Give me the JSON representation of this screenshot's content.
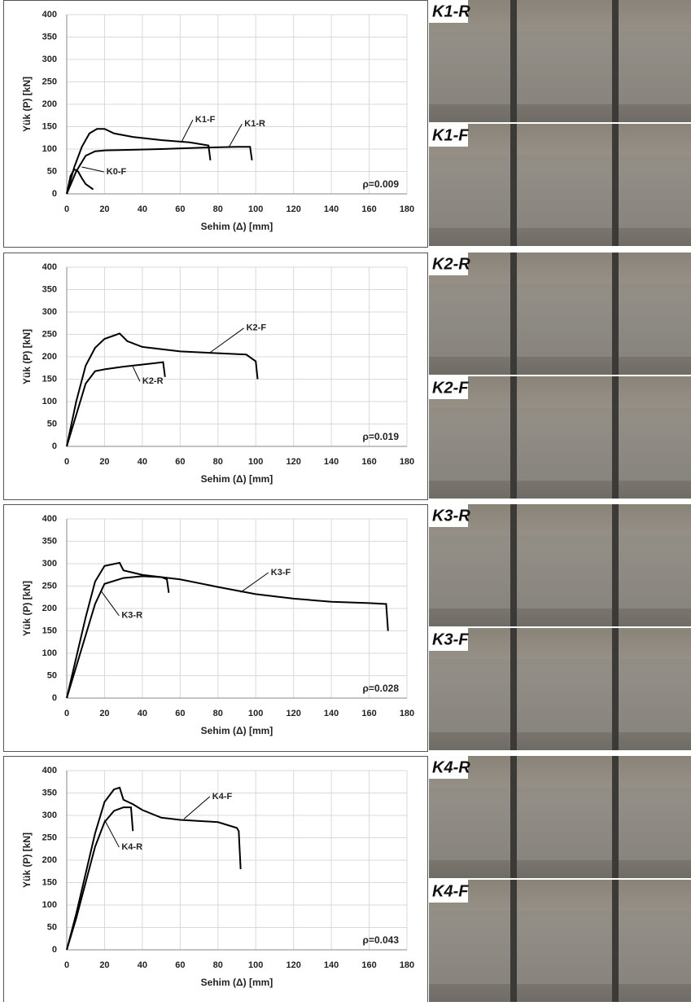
{
  "chart_data": [
    {
      "type": "line",
      "annotation": "ρ=0.009",
      "x_label": "Sehim (Δ) [mm]",
      "y_label": "Yük (P) [kN]",
      "xlim": [
        0,
        180
      ],
      "ylim": [
        0,
        400
      ],
      "xticks": [
        0,
        20,
        40,
        60,
        80,
        100,
        120,
        140,
        160,
        180
      ],
      "yticks": [
        0,
        50,
        100,
        150,
        200,
        250,
        300,
        350,
        400
      ],
      "grid": true,
      "series": [
        {
          "name": "K1-F",
          "color": "#000000",
          "x": [
            0,
            4,
            8,
            12,
            16,
            20,
            25,
            35,
            50,
            65,
            75,
            76
          ],
          "values": [
            0,
            60,
            105,
            135,
            145,
            145,
            135,
            127,
            120,
            115,
            108,
            75
          ]
        },
        {
          "name": "K1-R",
          "color": "#000000",
          "x": [
            0,
            5,
            10,
            15,
            20,
            30,
            50,
            70,
            90,
            97,
            98
          ],
          "values": [
            0,
            50,
            85,
            95,
            97,
            98,
            100,
            103,
            105,
            105,
            75
          ]
        },
        {
          "name": "K0-F",
          "color": "#000000",
          "x": [
            0,
            2,
            4,
            6,
            8,
            10,
            14
          ],
          "values": [
            0,
            40,
            55,
            50,
            35,
            22,
            10
          ]
        }
      ]
    },
    {
      "type": "line",
      "annotation": "ρ=0.019",
      "x_label": "Sehim (Δ) [mm]",
      "y_label": "Yük (P) [kN]",
      "xlim": [
        0,
        180
      ],
      "ylim": [
        0,
        400
      ],
      "xticks": [
        0,
        20,
        40,
        60,
        80,
        100,
        120,
        140,
        160,
        180
      ],
      "yticks": [
        0,
        50,
        100,
        150,
        200,
        250,
        300,
        350,
        400
      ],
      "grid": true,
      "series": [
        {
          "name": "K2-F",
          "color": "#000000",
          "x": [
            0,
            5,
            10,
            15,
            20,
            28,
            32,
            40,
            60,
            80,
            95,
            100,
            101
          ],
          "values": [
            0,
            100,
            180,
            220,
            240,
            252,
            235,
            222,
            212,
            208,
            205,
            190,
            150
          ]
        },
        {
          "name": "K2-R",
          "color": "#000000",
          "x": [
            0,
            5,
            10,
            15,
            20,
            30,
            45,
            51,
            52
          ],
          "values": [
            0,
            70,
            140,
            168,
            172,
            178,
            185,
            188,
            155
          ]
        }
      ]
    },
    {
      "type": "line",
      "annotation": "ρ=0.028",
      "x_label": "Sehim (Δ) [mm]",
      "y_label": "Yük (P) [kN]",
      "xlim": [
        0,
        180
      ],
      "ylim": [
        0,
        400
      ],
      "xticks": [
        0,
        20,
        40,
        60,
        80,
        100,
        120,
        140,
        160,
        180
      ],
      "yticks": [
        0,
        50,
        100,
        150,
        200,
        250,
        300,
        350,
        400
      ],
      "grid": true,
      "series": [
        {
          "name": "K3-F",
          "color": "#000000",
          "x": [
            0,
            5,
            10,
            15,
            20,
            28,
            30,
            40,
            60,
            80,
            100,
            120,
            140,
            160,
            169,
            170
          ],
          "values": [
            0,
            90,
            180,
            260,
            295,
            302,
            285,
            275,
            265,
            248,
            232,
            222,
            215,
            212,
            210,
            150
          ]
        },
        {
          "name": "K3-R",
          "color": "#000000",
          "x": [
            0,
            5,
            10,
            15,
            20,
            30,
            40,
            50,
            53,
            54
          ],
          "values": [
            0,
            70,
            140,
            210,
            255,
            268,
            272,
            270,
            265,
            235
          ]
        }
      ]
    },
    {
      "type": "line",
      "annotation": "ρ=0.043",
      "x_label": "Sehim (Δ) [mm]",
      "y_label": "Yük (P) [kN]",
      "xlim": [
        0,
        180
      ],
      "ylim": [
        0,
        400
      ],
      "xticks": [
        0,
        20,
        40,
        60,
        80,
        100,
        120,
        140,
        160,
        180
      ],
      "yticks": [
        0,
        50,
        100,
        150,
        200,
        250,
        300,
        350,
        400
      ],
      "grid": true,
      "series": [
        {
          "name": "K4-F",
          "color": "#000000",
          "x": [
            0,
            5,
            10,
            15,
            20,
            25,
            28,
            30,
            35,
            40,
            50,
            60,
            80,
            90,
            91,
            92
          ],
          "values": [
            0,
            80,
            170,
            260,
            330,
            358,
            362,
            335,
            325,
            312,
            295,
            290,
            285,
            272,
            265,
            180
          ]
        },
        {
          "name": "K4-R",
          "color": "#000000",
          "x": [
            0,
            5,
            10,
            15,
            20,
            25,
            30,
            34,
            35
          ],
          "values": [
            0,
            70,
            150,
            230,
            285,
            310,
            318,
            318,
            265
          ]
        }
      ]
    }
  ],
  "photos": [
    {
      "label": "K1-R"
    },
    {
      "label": "K1-F"
    },
    {
      "label": "K2-R"
    },
    {
      "label": "K2-F"
    },
    {
      "label": "K3-R"
    },
    {
      "label": "K3-F"
    },
    {
      "label": "K4-R"
    },
    {
      "label": "K4-F"
    }
  ]
}
